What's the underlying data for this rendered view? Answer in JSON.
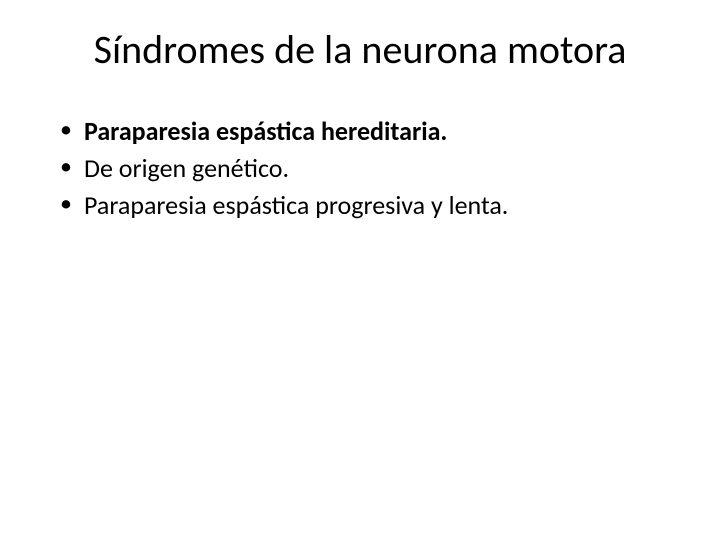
{
  "slide": {
    "title": "Síndromes de la neurona motora",
    "bullets": [
      {
        "text": "Paraparesia espástica hereditaria.",
        "bold": true
      },
      {
        "text": "De origen genético.",
        "bold": false
      },
      {
        "text": "Paraparesia espástica progresiva y lenta.",
        "bold": false
      }
    ],
    "colors": {
      "background": "#ffffff",
      "text": "#000000"
    },
    "typography": {
      "title_fontsize": 40,
      "title_weight": 400,
      "bullet_fontsize": 26,
      "font_family": "Calibri"
    }
  }
}
